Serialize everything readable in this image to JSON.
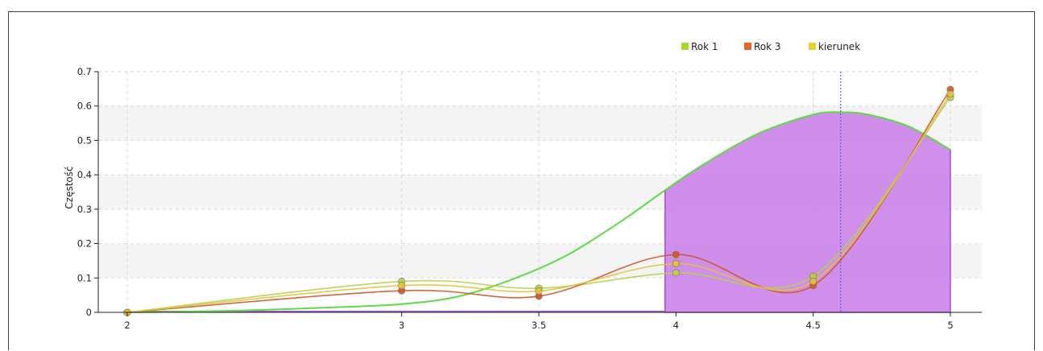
{
  "chart_data": {
    "type": "line",
    "title": "",
    "xlabel": "",
    "ylabel": "Częstość",
    "xlim": [
      2,
      5
    ],
    "ylim": [
      0,
      0.7
    ],
    "x_ticks": [
      "2",
      "3",
      "3.5",
      "4",
      "4.5",
      "5"
    ],
    "y_ticks": [
      "0",
      "0.1",
      "0.2",
      "0.3",
      "0.4",
      "0.5",
      "0.6",
      "0.7"
    ],
    "grid": true,
    "legend_position": "top-right",
    "legend": [
      {
        "name": "Rok 1",
        "color": "#a8d82a"
      },
      {
        "name": "Rok 3",
        "color": "#e8622a"
      },
      {
        "name": "kierunek",
        "color": "#e8d02a"
      }
    ],
    "series": [
      {
        "name": "Rok 1",
        "color": "#b5d04a",
        "points": [
          [
            2,
            0
          ],
          [
            3,
            0.09
          ],
          [
            3.5,
            0.07
          ],
          [
            4,
            0.115
          ],
          [
            4.5,
            0.105
          ],
          [
            5,
            0.625
          ]
        ]
      },
      {
        "name": "Rok 3",
        "color": "#d0542a",
        "points": [
          [
            2,
            0
          ],
          [
            3,
            0.063
          ],
          [
            3.5,
            0.047
          ],
          [
            4,
            0.168
          ],
          [
            4.5,
            0.078
          ],
          [
            5,
            0.648
          ]
        ]
      },
      {
        "name": "kierunek",
        "color": "#e0c43a",
        "points": [
          [
            2,
            0
          ],
          [
            3,
            0.078
          ],
          [
            3.5,
            0.062
          ],
          [
            4,
            0.142
          ],
          [
            4.5,
            0.09
          ],
          [
            5,
            0.635
          ]
        ]
      }
    ],
    "density_curve": {
      "color": "#5cdc44",
      "x": [
        2.0,
        2.2,
        2.4,
        2.6,
        2.8,
        3.0,
        3.2,
        3.4,
        3.6,
        3.8,
        3.96,
        4.1,
        4.3,
        4.5,
        4.6,
        4.7,
        4.85,
        5.0
      ],
      "y": [
        0.0,
        0.002,
        0.005,
        0.01,
        0.016,
        0.024,
        0.045,
        0.095,
        0.165,
        0.265,
        0.355,
        0.43,
        0.52,
        0.575,
        0.582,
        0.575,
        0.54,
        0.473
      ]
    },
    "shaded_region": {
      "from": 3.96,
      "to": 5.0,
      "color": "#c77be8"
    },
    "reference_line": {
      "x": 4.6,
      "color": "#6a5cf0"
    }
  }
}
